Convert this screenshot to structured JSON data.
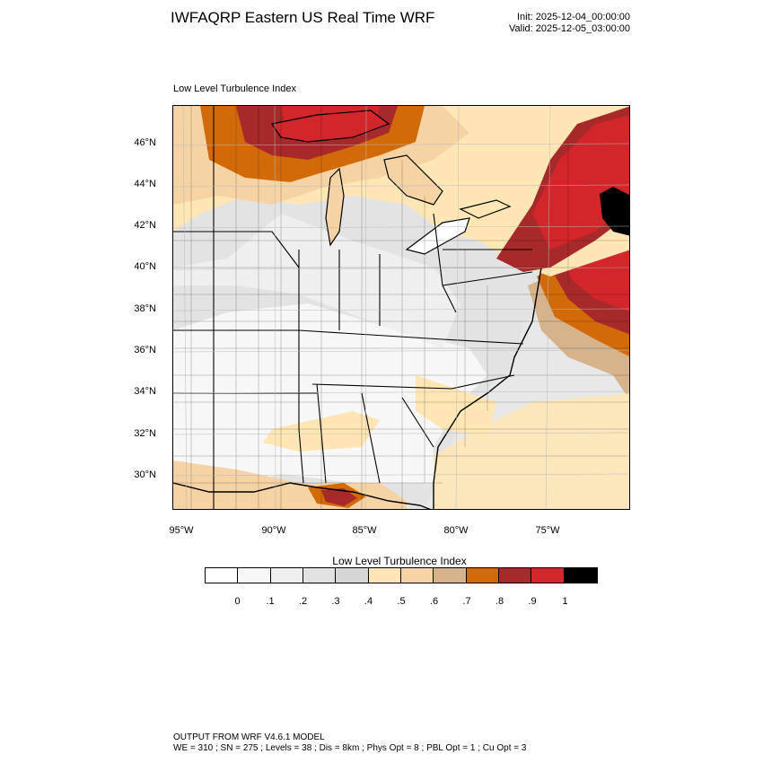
{
  "header": {
    "title": "IWFAQRP Eastern US Real Time WRF",
    "init": "Init: 2025-12-04_00:00:00",
    "valid": "Valid: 2025-12-05_03:00:00"
  },
  "map": {
    "label": "Low Level Turbulence Index",
    "latitude_labels": [
      "46°N",
      "44°N",
      "42°N",
      "40°N",
      "38°N",
      "36°N",
      "34°N",
      "32°N",
      "30°N"
    ],
    "longitude_labels": [
      "95°W",
      "90°W",
      "85°W",
      "80°W",
      "75°W"
    ],
    "field_levels": {
      "upper_great_lakes": 0.9,
      "northern_new_england": 1.0,
      "atlantic_offshore": 0.9,
      "central_appalachians": 0.3,
      "southeast_interior": 0.1,
      "gulf_coast_alabama": 0.8
    }
  },
  "colorbar": {
    "title": "Low Level Turbulence Index",
    "ticks": [
      "0",
      ".1",
      ".2",
      ".3",
      ".4",
      ".5",
      ".6",
      ".7",
      ".8",
      ".9",
      "1"
    ],
    "colors": [
      "#ffffff",
      "#f7f7f7",
      "#efefef",
      "#e2e2e2",
      "#d6d6d6",
      "#ffe6b4",
      "#f5d3a5",
      "#d7b38c",
      "#d26a0a",
      "#a8292a",
      "#d2262b",
      "#000000"
    ]
  },
  "footer": {
    "line1": "OUTPUT FROM WRF V4.6.1 MODEL",
    "line2": "WE = 310 ; SN = 275 ; Levels = 38 ; Dis = 8km ; Phys Opt = 8 ; PBL Opt = 1 ; Cu Opt = 3"
  }
}
